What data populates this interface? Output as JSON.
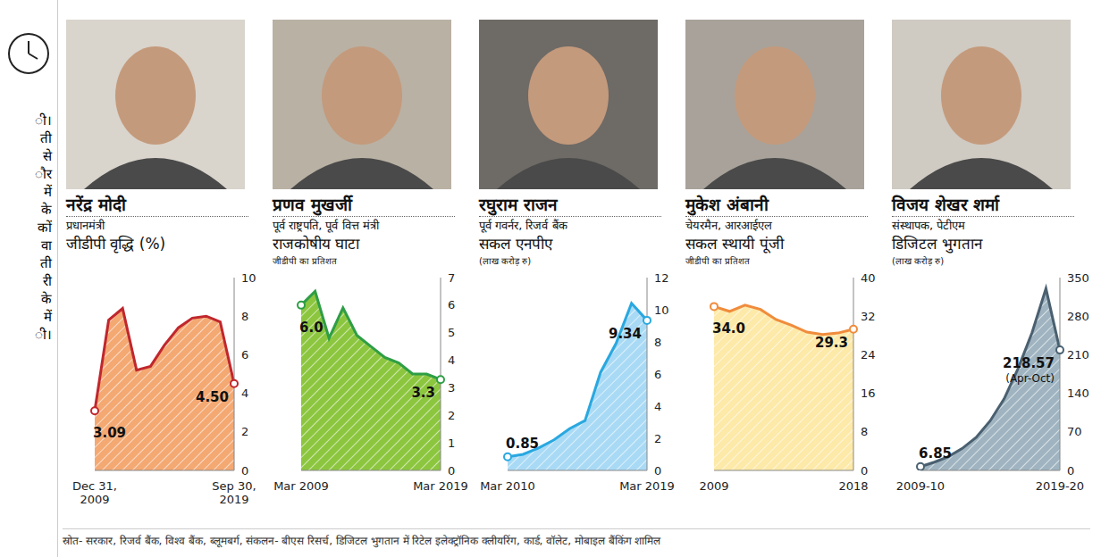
{
  "chart_data": [
    {
      "type": "area",
      "person": {
        "name": "नरेंद्र मोदी",
        "role": "प्रधानमंत्री"
      },
      "title": "जीडीपी वृद्धि (%)",
      "categories": [
        "Dec 31, 2009",
        null,
        null,
        null,
        null,
        null,
        null,
        null,
        null,
        null,
        "Sep 30, 2019"
      ],
      "values": [
        3.09,
        7.8,
        8.4,
        5.2,
        5.4,
        6.5,
        7.4,
        7.9,
        8.0,
        7.7,
        4.5
      ],
      "value_labels": [
        "3.09",
        null,
        null,
        null,
        null,
        null,
        null,
        null,
        null,
        null,
        "4.50"
      ],
      "color": "#c0272d",
      "ylim": [
        0,
        10
      ],
      "yticks": [
        0,
        2,
        4,
        6,
        8,
        10
      ],
      "grid": false
    },
    {
      "type": "area",
      "person": {
        "name": "प्रणव मुखर्जी",
        "role": "पूर्व राष्ट्रपति, पूर्व वित्त मंत्री"
      },
      "title": "राजकोषीय घाटा",
      "subtitle": "जीडीपी का प्रतिशत",
      "categories": [
        "Mar 2009",
        null,
        null,
        null,
        null,
        null,
        null,
        null,
        null,
        null,
        "Mar 2019"
      ],
      "values": [
        6.0,
        6.5,
        4.8,
        5.9,
        4.9,
        4.5,
        4.1,
        3.9,
        3.5,
        3.5,
        3.3
      ],
      "value_labels": [
        "6.0",
        null,
        null,
        null,
        null,
        null,
        null,
        null,
        null,
        null,
        "3.3"
      ],
      "color": "#2e9e45",
      "ylim": [
        0,
        7
      ],
      "yticks": [
        0,
        1,
        2,
        3,
        4,
        5,
        6,
        7
      ],
      "grid": false
    },
    {
      "type": "area",
      "person": {
        "name": "रघुराम राजन",
        "role": "पूर्व गवर्नर, रिजर्व बैंक"
      },
      "title": "सकल एनपीए",
      "subtitle": "(लाख करोड़ रु)",
      "categories": [
        "Mar 2010",
        null,
        null,
        null,
        null,
        null,
        null,
        null,
        null,
        "Mar 2019"
      ],
      "values": [
        0.85,
        1.0,
        1.4,
        1.9,
        2.6,
        3.1,
        6.1,
        7.9,
        10.4,
        9.34
      ],
      "value_labels": [
        "0.85",
        null,
        null,
        null,
        null,
        null,
        null,
        null,
        null,
        "9.34"
      ],
      "color": "#29a8e0",
      "ylim": [
        0,
        12
      ],
      "yticks": [
        0,
        2,
        4,
        6,
        8,
        10,
        12
      ],
      "grid": false
    },
    {
      "type": "area",
      "person": {
        "name": "मुकेश अंबानी",
        "role": "चेयरमैन, आरआईएल"
      },
      "title": "सकल स्थायी पूंजी",
      "subtitle": "जीडीपी का प्रतिशत",
      "categories": [
        "2009",
        null,
        null,
        null,
        null,
        null,
        null,
        null,
        null,
        "2018"
      ],
      "values": [
        34.0,
        33.0,
        34.3,
        33.4,
        31.3,
        30.1,
        28.7,
        28.2,
        28.5,
        29.3
      ],
      "value_labels": [
        "34.0",
        null,
        null,
        null,
        null,
        null,
        null,
        null,
        null,
        "29.3"
      ],
      "color": "#f08c3c",
      "ylim": [
        0,
        40
      ],
      "yticks": [
        0,
        8,
        16,
        24,
        32,
        40
      ],
      "grid": false
    },
    {
      "type": "area",
      "person": {
        "name": "विजय शेखर शर्मा",
        "role": "संस्थापक, पेटीएम"
      },
      "title": "डिजिटल भुगतान",
      "subtitle": "(लाख करोड़ रु)",
      "categories": [
        "2009-10",
        null,
        null,
        null,
        null,
        null,
        null,
        null,
        null,
        null,
        "2019-20"
      ],
      "values": [
        6.85,
        15,
        25,
        40,
        60,
        90,
        130,
        185,
        250,
        330,
        218.57
      ],
      "value_labels": [
        "6.85",
        null,
        null,
        null,
        null,
        null,
        null,
        null,
        null,
        null,
        "218.57"
      ],
      "note": "(Apr-Oct)",
      "color": "#4a6070",
      "ylim": [
        0,
        350
      ],
      "yticks": [
        0,
        70,
        140,
        210,
        280,
        350
      ],
      "grid": false
    }
  ],
  "source": "स्रोत- सरकार, रिजर्व बैंक, विश्व बैंक, ब्लूमबर्ग, संकलन- बीएस रिसर्च, डिजिटल भुगतान में रिटेल इलेक्ट्रॉनिक क्लीयरिंग, कार्ड, वॉलेट, मोबाइल बैंकिंग शामिल",
  "side_text": [
    "ी।",
    "ती",
    "से",
    "ौर",
    "में",
    "के",
    "कों",
    "वा",
    "ती",
    "री",
    "के",
    "में",
    "ी।"
  ]
}
